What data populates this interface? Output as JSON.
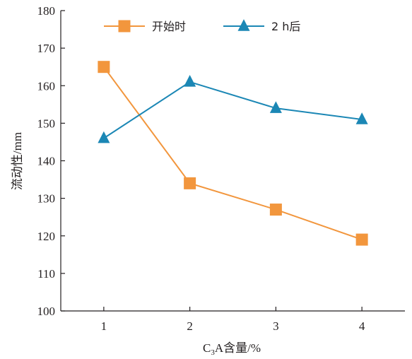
{
  "chart_data": {
    "type": "line",
    "xlabel_main": "C",
    "xlabel_sub": "3",
    "xlabel_rest": "A含量/%",
    "ylabel": "流动性/mm",
    "categories": [
      "1",
      "2",
      "3",
      "4"
    ],
    "x": [
      1,
      2,
      3,
      4
    ],
    "xlim": [
      0.5,
      4.5
    ],
    "ylim": [
      100,
      180
    ],
    "yticks": [
      100,
      110,
      120,
      130,
      140,
      150,
      160,
      170,
      180
    ],
    "grid": false,
    "legend_position": "top",
    "series": [
      {
        "name": "开始时",
        "values": [
          165,
          134,
          127,
          119
        ],
        "color": "#f2963d",
        "marker": "square"
      },
      {
        "name": "2 h后",
        "values": [
          146,
          161,
          154,
          151
        ],
        "color": "#1b87b5",
        "marker": "triangle"
      }
    ]
  }
}
